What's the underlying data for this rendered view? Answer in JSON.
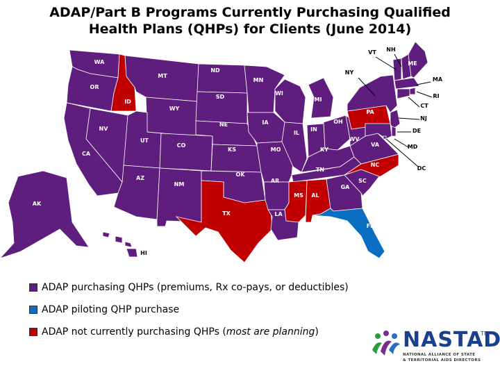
{
  "title": {
    "line1": "ADAP/Part B Programs Currently Purchasing Qualified",
    "line2": "Health Plans (QHPs) for Clients (June 2014)"
  },
  "colors": {
    "purchasing": "#5f1d7e",
    "piloting": "#0a6fc2",
    "not_purchasing": "#c00000"
  },
  "states": [
    {
      "code": "WA",
      "status": "purchasing"
    },
    {
      "code": "OR",
      "status": "purchasing"
    },
    {
      "code": "CA",
      "status": "purchasing"
    },
    {
      "code": "NV",
      "status": "purchasing"
    },
    {
      "code": "ID",
      "status": "not_purchasing"
    },
    {
      "code": "MT",
      "status": "purchasing"
    },
    {
      "code": "WY",
      "status": "purchasing"
    },
    {
      "code": "UT",
      "status": "purchasing"
    },
    {
      "code": "AZ",
      "status": "purchasing"
    },
    {
      "code": "CO",
      "status": "purchasing"
    },
    {
      "code": "NM",
      "status": "purchasing"
    },
    {
      "code": "ND",
      "status": "purchasing"
    },
    {
      "code": "SD",
      "status": "purchasing"
    },
    {
      "code": "NE",
      "status": "purchasing"
    },
    {
      "code": "KS",
      "status": "purchasing"
    },
    {
      "code": "OK",
      "status": "purchasing"
    },
    {
      "code": "TX",
      "status": "not_purchasing"
    },
    {
      "code": "MN",
      "status": "purchasing"
    },
    {
      "code": "IA",
      "status": "purchasing"
    },
    {
      "code": "MO",
      "status": "purchasing"
    },
    {
      "code": "AR",
      "status": "purchasing"
    },
    {
      "code": "LA",
      "status": "purchasing"
    },
    {
      "code": "WI",
      "status": "purchasing"
    },
    {
      "code": "IL",
      "status": "purchasing"
    },
    {
      "code": "MI",
      "status": "purchasing"
    },
    {
      "code": "IN",
      "status": "purchasing"
    },
    {
      "code": "OH",
      "status": "purchasing"
    },
    {
      "code": "KY",
      "status": "purchasing"
    },
    {
      "code": "TN",
      "status": "purchasing"
    },
    {
      "code": "MS",
      "status": "not_purchasing"
    },
    {
      "code": "AL",
      "status": "not_purchasing"
    },
    {
      "code": "GA",
      "status": "purchasing"
    },
    {
      "code": "FL",
      "status": "piloting"
    },
    {
      "code": "SC",
      "status": "purchasing"
    },
    {
      "code": "NC",
      "status": "not_purchasing"
    },
    {
      "code": "VA",
      "status": "purchasing"
    },
    {
      "code": "WV",
      "status": "purchasing"
    },
    {
      "code": "PA",
      "status": "not_purchasing"
    },
    {
      "code": "NY",
      "status": "purchasing"
    },
    {
      "code": "VT",
      "status": "purchasing"
    },
    {
      "code": "NH",
      "status": "purchasing"
    },
    {
      "code": "ME",
      "status": "purchasing"
    },
    {
      "code": "MA",
      "status": "purchasing"
    },
    {
      "code": "RI",
      "status": "purchasing"
    },
    {
      "code": "CT",
      "status": "purchasing"
    },
    {
      "code": "NJ",
      "status": "purchasing"
    },
    {
      "code": "DE",
      "status": "purchasing"
    },
    {
      "code": "MD",
      "status": "purchasing"
    },
    {
      "code": "DC",
      "status": "purchasing"
    },
    {
      "code": "AK",
      "status": "purchasing"
    },
    {
      "code": "HI",
      "status": "purchasing"
    }
  ],
  "legend": {
    "purchasing": "ADAP purchasing QHPs (premiums, Rx co-pays, or deductibles)",
    "piloting": "ADAP piloting QHP purchase",
    "not_purchasing_prefix": "ADAP not currently purchasing QHPs (",
    "not_purchasing_italic": "most are planning",
    "not_purchasing_suffix": ")"
  },
  "logo": {
    "name": "NASTAD",
    "tm": "TM",
    "line1": "NATIONAL ALLIANCE OF STATE",
    "line2": "& TERRITORIAL AIDS DIRECTORS"
  }
}
